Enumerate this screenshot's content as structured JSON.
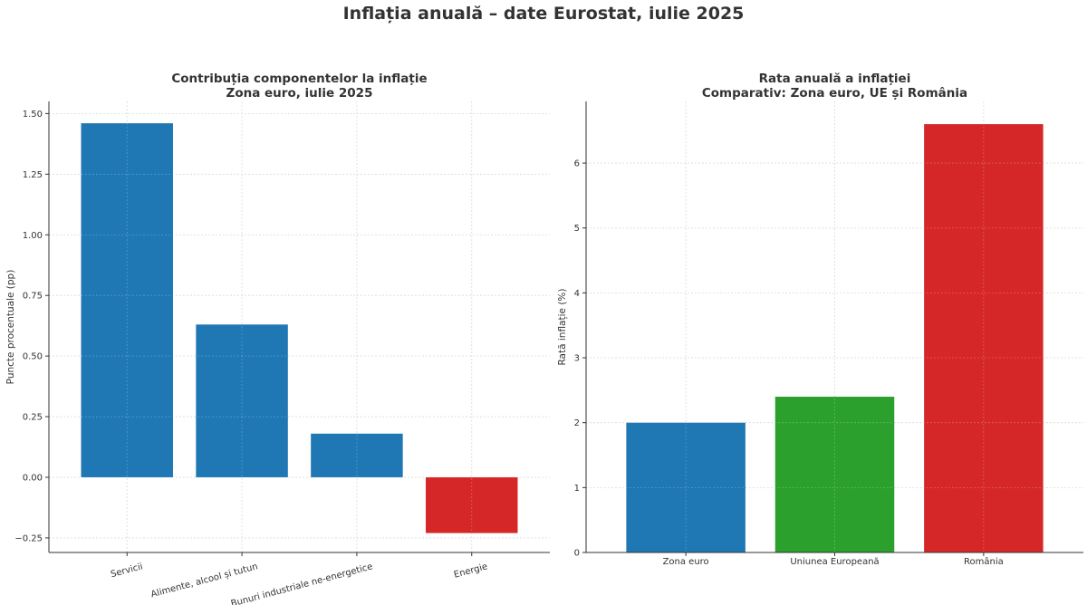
{
  "figure_title": "Inflația anuală – date Eurostat, iulie 2025",
  "colors": {
    "blue": "#1f77b4",
    "green": "#2ca02c",
    "red": "#d62728"
  },
  "chart_data": [
    {
      "type": "bar",
      "title_lines": [
        "Contribuția componentelor la inflație",
        "Zona euro, iulie 2025"
      ],
      "categories": [
        "Servicii",
        "Alimente, alcool și tutun",
        "Bunuri industriale ne-energetice",
        "Energie"
      ],
      "values": [
        1.46,
        0.63,
        0.18,
        -0.23
      ],
      "bar_colors": [
        "#1f77b4",
        "#1f77b4",
        "#1f77b4",
        "#d62728"
      ],
      "xlabel": "",
      "ylabel": "Puncte procentuale (pp)",
      "ylim": [
        -0.31,
        1.55
      ],
      "yticks": [
        -0.25,
        0.0,
        0.25,
        0.5,
        0.75,
        1.0,
        1.25,
        1.5
      ],
      "ytick_labels": [
        "−0.25",
        "0.00",
        "0.25",
        "0.50",
        "0.75",
        "1.00",
        "1.25",
        "1.50"
      ],
      "xtick_rotation": -15,
      "grid": true
    },
    {
      "type": "bar",
      "title_lines": [
        "Rata anuală a inflației",
        "Comparativ: Zona euro, UE și România"
      ],
      "categories": [
        "Zona euro",
        "Uniunea Europeană",
        "România"
      ],
      "values": [
        2.0,
        2.4,
        6.6
      ],
      "bar_colors": [
        "#1f77b4",
        "#2ca02c",
        "#d62728"
      ],
      "xlabel": "",
      "ylabel": "Rată inflație (%)",
      "ylim": [
        0,
        6.95
      ],
      "yticks": [
        0,
        1,
        2,
        3,
        4,
        5,
        6
      ],
      "ytick_labels": [
        "0",
        "1",
        "2",
        "3",
        "4",
        "5",
        "6"
      ],
      "xtick_rotation": 0,
      "grid": true
    }
  ]
}
